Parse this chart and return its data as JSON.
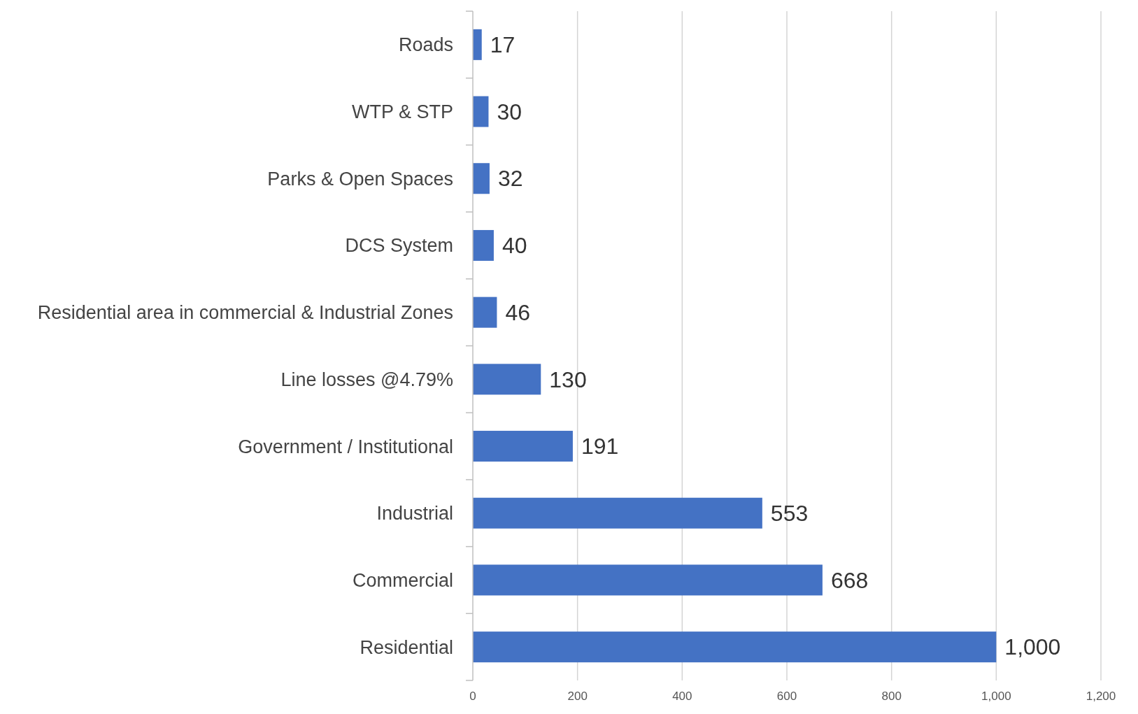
{
  "chart_data": {
    "type": "bar",
    "orientation": "horizontal",
    "categories": [
      "Roads",
      "WTP & STP",
      "Parks & Open Spaces",
      "DCS System",
      "Residential area in commercial & Industrial Zones",
      "Line losses @4.79%",
      "Government / Institutional",
      "Industrial",
      "Commercial",
      "Residential"
    ],
    "values": [
      17,
      30,
      32,
      40,
      46,
      130,
      191,
      553,
      668,
      1000
    ],
    "value_labels": [
      "17",
      "30",
      "32",
      "40",
      "46",
      "130",
      "191",
      "553",
      "668",
      "1,000"
    ],
    "color": "#4472c4",
    "xlim": [
      0,
      1200
    ],
    "xticks": [
      0,
      200,
      400,
      600,
      800,
      {
        "value": 1000,
        "label": "1,000"
      },
      {
        "value": 1200,
        "label": "1,200"
      }
    ],
    "grid": "x"
  }
}
